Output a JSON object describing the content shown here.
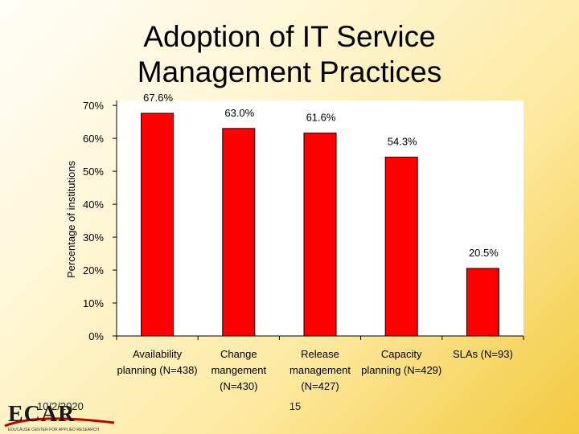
{
  "slide": {
    "title_line1": "Adoption of IT Service",
    "title_line2": "Management Practices",
    "date": "10/2/2020",
    "page_number": "15",
    "logo_text": "ECAR",
    "logo_subtext": "EDUCAUSE CENTER FOR APPLIED RESEARCH"
  },
  "chart_data": {
    "type": "bar",
    "title": "",
    "ylabel": "Percentage of institutions",
    "xlabel": "",
    "categories": [
      [
        "Availability",
        "planning (N=438)"
      ],
      [
        "Change",
        "mangement",
        "(N=430)"
      ],
      [
        "Release",
        "management",
        "(N=427)"
      ],
      [
        "Capacity",
        "planning (N=429)"
      ],
      [
        "SLAs (N=93)"
      ]
    ],
    "values": [
      67.6,
      63.0,
      61.6,
      54.3,
      20.5
    ],
    "value_labels": [
      "67.6%",
      "63.0%",
      "61.6%",
      "54.3%",
      "20.5%"
    ],
    "ylim": [
      0,
      70
    ],
    "yticks": [
      0,
      10,
      20,
      30,
      40,
      50,
      60,
      70
    ],
    "ytick_labels": [
      "0%",
      "10%",
      "20%",
      "30%",
      "40%",
      "50%",
      "60%",
      "70%"
    ],
    "grid": false,
    "legend": "none",
    "bar_color": "#ff0000",
    "plot_background": "#ffffff"
  }
}
